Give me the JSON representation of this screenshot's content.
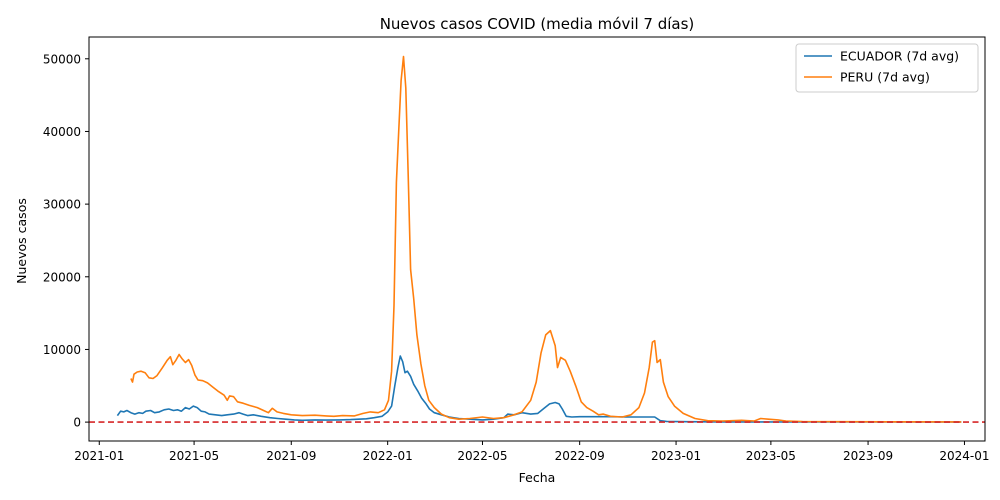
{
  "chart_data": {
    "type": "line",
    "title": "Nuevos casos COVID (media móvil 7 días)",
    "xlabel": "Fecha",
    "ylabel": "Nuevos casos",
    "xlim": [
      "2020-12-19",
      "2024-01-27"
    ],
    "ylim": [
      -2600,
      53000
    ],
    "x_ticks": [
      "2021-01",
      "2021-05",
      "2021-09",
      "2022-01",
      "2022-05",
      "2022-09",
      "2023-01",
      "2023-05",
      "2023-09",
      "2024-01"
    ],
    "y_ticks": [
      0,
      10000,
      20000,
      30000,
      40000,
      50000
    ],
    "grid": false,
    "legend": "top-right",
    "reference_line": {
      "y": 0,
      "color": "#d62728",
      "style": "dashed"
    },
    "series": [
      {
        "name": "ECUADOR (7d avg)",
        "color": "#1f77b4",
        "points": [
          [
            "2021-01-24",
            900
          ],
          [
            "2021-01-28",
            1500
          ],
          [
            "2021-02-01",
            1400
          ],
          [
            "2021-02-05",
            1600
          ],
          [
            "2021-02-10",
            1300
          ],
          [
            "2021-02-15",
            1100
          ],
          [
            "2021-02-20",
            1300
          ],
          [
            "2021-02-25",
            1200
          ],
          [
            "2021-03-01",
            1500
          ],
          [
            "2021-03-07",
            1600
          ],
          [
            "2021-03-12",
            1300
          ],
          [
            "2021-03-18",
            1400
          ],
          [
            "2021-03-24",
            1700
          ],
          [
            "2021-03-30",
            1800
          ],
          [
            "2021-04-05",
            1600
          ],
          [
            "2021-04-10",
            1700
          ],
          [
            "2021-04-15",
            1500
          ],
          [
            "2021-04-20",
            2000
          ],
          [
            "2021-04-25",
            1800
          ],
          [
            "2021-04-30",
            2200
          ],
          [
            "2021-05-05",
            2000
          ],
          [
            "2021-05-10",
            1500
          ],
          [
            "2021-05-15",
            1400
          ],
          [
            "2021-05-20",
            1100
          ],
          [
            "2021-05-28",
            1000
          ],
          [
            "2021-06-05",
            900
          ],
          [
            "2021-06-12",
            1000
          ],
          [
            "2021-06-20",
            1100
          ],
          [
            "2021-06-27",
            1300
          ],
          [
            "2021-07-02",
            1100
          ],
          [
            "2021-07-08",
            900
          ],
          [
            "2021-07-15",
            1000
          ],
          [
            "2021-07-25",
            800
          ],
          [
            "2021-08-05",
            600
          ],
          [
            "2021-08-15",
            500
          ],
          [
            "2021-08-25",
            400
          ],
          [
            "2021-09-05",
            300
          ],
          [
            "2021-09-15",
            250
          ],
          [
            "2021-10-01",
            300
          ],
          [
            "2021-10-15",
            280
          ],
          [
            "2021-11-01",
            300
          ],
          [
            "2021-11-15",
            350
          ],
          [
            "2021-11-25",
            400
          ],
          [
            "2021-12-05",
            450
          ],
          [
            "2021-12-15",
            600
          ],
          [
            "2021-12-25",
            800
          ],
          [
            "2022-01-01",
            1400
          ],
          [
            "2022-01-06",
            2200
          ],
          [
            "2022-01-10",
            5000
          ],
          [
            "2022-01-14",
            7500
          ],
          [
            "2022-01-17",
            9100
          ],
          [
            "2022-01-20",
            8300
          ],
          [
            "2022-01-23",
            6800
          ],
          [
            "2022-01-26",
            7000
          ],
          [
            "2022-01-30",
            6300
          ],
          [
            "2022-02-03",
            5200
          ],
          [
            "2022-02-08",
            4300
          ],
          [
            "2022-02-13",
            3300
          ],
          [
            "2022-02-18",
            2600
          ],
          [
            "2022-02-23",
            1800
          ],
          [
            "2022-03-01",
            1300
          ],
          [
            "2022-03-10",
            1000
          ],
          [
            "2022-03-20",
            700
          ],
          [
            "2022-04-01",
            500
          ],
          [
            "2022-04-15",
            400
          ],
          [
            "2022-05-01",
            300
          ],
          [
            "2022-05-15",
            400
          ],
          [
            "2022-05-28",
            600
          ],
          [
            "2022-06-02",
            1100
          ],
          [
            "2022-06-10",
            1000
          ],
          [
            "2022-06-20",
            1300
          ],
          [
            "2022-07-01",
            1100
          ],
          [
            "2022-07-10",
            1200
          ],
          [
            "2022-07-18",
            1900
          ],
          [
            "2022-07-25",
            2500
          ],
          [
            "2022-08-01",
            2700
          ],
          [
            "2022-08-06",
            2500
          ],
          [
            "2022-08-10",
            1800
          ],
          [
            "2022-08-15",
            800
          ],
          [
            "2022-08-22",
            700
          ],
          [
            "2022-09-01",
            750
          ],
          [
            "2022-09-20",
            750
          ],
          [
            "2022-10-10",
            750
          ],
          [
            "2022-10-30",
            700
          ],
          [
            "2022-11-20",
            700
          ],
          [
            "2022-12-05",
            700
          ],
          [
            "2022-12-12",
            200
          ],
          [
            "2022-12-20",
            100
          ],
          [
            "2023-01-15",
            50
          ],
          [
            "2023-03-01",
            30
          ],
          [
            "2023-06-01",
            20
          ],
          [
            "2023-09-01",
            15
          ],
          [
            "2023-12-28",
            10
          ]
        ]
      },
      {
        "name": "PERU (7d avg)",
        "color": "#ff7f0e",
        "points": [
          [
            "2021-02-10",
            6000
          ],
          [
            "2021-02-12",
            5500
          ],
          [
            "2021-02-14",
            6600
          ],
          [
            "2021-02-18",
            6900
          ],
          [
            "2021-02-23",
            7000
          ],
          [
            "2021-02-28",
            6800
          ],
          [
            "2021-03-05",
            6100
          ],
          [
            "2021-03-10",
            6000
          ],
          [
            "2021-03-15",
            6400
          ],
          [
            "2021-03-22",
            7500
          ],
          [
            "2021-03-28",
            8500
          ],
          [
            "2021-04-01",
            9000
          ],
          [
            "2021-04-04",
            7900
          ],
          [
            "2021-04-08",
            8500
          ],
          [
            "2021-04-12",
            9300
          ],
          [
            "2021-04-16",
            8700
          ],
          [
            "2021-04-20",
            8200
          ],
          [
            "2021-04-24",
            8600
          ],
          [
            "2021-04-28",
            7800
          ],
          [
            "2021-05-02",
            6500
          ],
          [
            "2021-05-06",
            5800
          ],
          [
            "2021-05-12",
            5700
          ],
          [
            "2021-05-18",
            5400
          ],
          [
            "2021-05-25",
            4800
          ],
          [
            "2021-06-01",
            4200
          ],
          [
            "2021-06-08",
            3700
          ],
          [
            "2021-06-12",
            3000
          ],
          [
            "2021-06-15",
            3600
          ],
          [
            "2021-06-20",
            3500
          ],
          [
            "2021-06-25",
            2800
          ],
          [
            "2021-07-02",
            2600
          ],
          [
            "2021-07-10",
            2300
          ],
          [
            "2021-07-20",
            2000
          ],
          [
            "2021-07-28",
            1600
          ],
          [
            "2021-08-03",
            1300
          ],
          [
            "2021-08-08",
            1900
          ],
          [
            "2021-08-14",
            1400
          ],
          [
            "2021-08-22",
            1200
          ],
          [
            "2021-09-01",
            1000
          ],
          [
            "2021-09-15",
            900
          ],
          [
            "2021-10-01",
            950
          ],
          [
            "2021-10-15",
            850
          ],
          [
            "2021-10-25",
            800
          ],
          [
            "2021-11-05",
            900
          ],
          [
            "2021-11-20",
            850
          ],
          [
            "2021-12-01",
            1200
          ],
          [
            "2021-12-10",
            1400
          ],
          [
            "2021-12-20",
            1300
          ],
          [
            "2021-12-28",
            1700
          ],
          [
            "2022-01-02",
            3000
          ],
          [
            "2022-01-06",
            7000
          ],
          [
            "2022-01-09",
            16000
          ],
          [
            "2022-01-12",
            33000
          ],
          [
            "2022-01-15",
            40000
          ],
          [
            "2022-01-18",
            47000
          ],
          [
            "2022-01-21",
            50300
          ],
          [
            "2022-01-24",
            46000
          ],
          [
            "2022-01-27",
            34000
          ],
          [
            "2022-01-30",
            21000
          ],
          [
            "2022-02-03",
            17000
          ],
          [
            "2022-02-07",
            12000
          ],
          [
            "2022-02-12",
            8000
          ],
          [
            "2022-02-17",
            5000
          ],
          [
            "2022-02-22",
            3000
          ],
          [
            "2022-03-01",
            2000
          ],
          [
            "2022-03-10",
            1100
          ],
          [
            "2022-03-20",
            600
          ],
          [
            "2022-04-01",
            400
          ],
          [
            "2022-04-15",
            500
          ],
          [
            "2022-05-01",
            700
          ],
          [
            "2022-05-15",
            500
          ],
          [
            "2022-05-28",
            600
          ],
          [
            "2022-06-10",
            1000
          ],
          [
            "2022-06-20",
            1400
          ],
          [
            "2022-07-01",
            3000
          ],
          [
            "2022-07-08",
            5500
          ],
          [
            "2022-07-14",
            9500
          ],
          [
            "2022-07-20",
            12000
          ],
          [
            "2022-07-26",
            12600
          ],
          [
            "2022-08-01",
            10500
          ],
          [
            "2022-08-04",
            7500
          ],
          [
            "2022-08-08",
            8900
          ],
          [
            "2022-08-14",
            8500
          ],
          [
            "2022-08-20",
            7000
          ],
          [
            "2022-08-27",
            5000
          ],
          [
            "2022-09-03",
            2800
          ],
          [
            "2022-09-10",
            2000
          ],
          [
            "2022-09-18",
            1500
          ],
          [
            "2022-09-25",
            1000
          ],
          [
            "2022-10-01",
            1100
          ],
          [
            "2022-10-10",
            800
          ],
          [
            "2022-10-25",
            700
          ],
          [
            "2022-11-05",
            1000
          ],
          [
            "2022-11-15",
            2000
          ],
          [
            "2022-11-22",
            4000
          ],
          [
            "2022-11-28",
            7500
          ],
          [
            "2022-12-02",
            11000
          ],
          [
            "2022-12-05",
            11200
          ],
          [
            "2022-12-08",
            8200
          ],
          [
            "2022-12-12",
            8600
          ],
          [
            "2022-12-16",
            5500
          ],
          [
            "2022-12-22",
            3500
          ],
          [
            "2022-12-30",
            2200
          ],
          [
            "2023-01-10",
            1200
          ],
          [
            "2023-01-25",
            500
          ],
          [
            "2023-02-10",
            200
          ],
          [
            "2023-03-01",
            150
          ],
          [
            "2023-03-25",
            250
          ],
          [
            "2023-04-10",
            150
          ],
          [
            "2023-04-18",
            500
          ],
          [
            "2023-04-28",
            400
          ],
          [
            "2023-05-10",
            300
          ],
          [
            "2023-05-20",
            150
          ],
          [
            "2023-06-10",
            80
          ],
          [
            "2023-08-01",
            60
          ],
          [
            "2023-10-01",
            40
          ],
          [
            "2023-12-28",
            30
          ]
        ]
      }
    ]
  }
}
